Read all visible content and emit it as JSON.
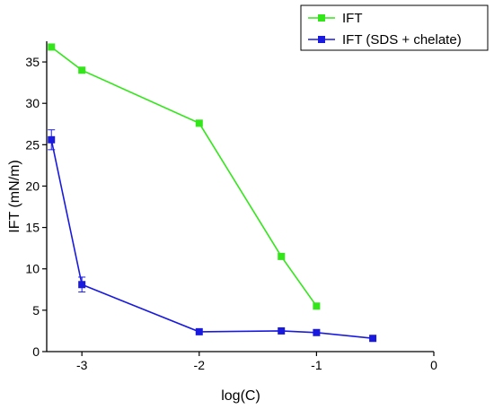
{
  "chart_data": {
    "type": "line",
    "title": "",
    "xlabel": "log(C)",
    "ylabel": "IFT (mN/m)",
    "xlim": [
      -3.3,
      0
    ],
    "ylim": [
      0,
      37.5
    ],
    "x_ticks": [
      -3,
      -2,
      -1,
      0
    ],
    "x_tick_labels": [
      "-3",
      "-2",
      "-1",
      "0"
    ],
    "y_ticks": [
      0,
      5,
      10,
      15,
      20,
      25,
      30,
      35
    ],
    "y_tick_labels": [
      "0",
      "5",
      "10",
      "15",
      "20",
      "25",
      "30",
      "35"
    ],
    "grid": false,
    "legend_position": "top-right",
    "series": [
      {
        "name": "IFT",
        "color": "#33e61a",
        "marker": "square",
        "x": [
          -3.26,
          -3.0,
          -2.0,
          -1.3,
          -1.0
        ],
        "y": [
          36.8,
          34.0,
          27.6,
          11.5,
          5.5
        ]
      },
      {
        "name": "IFT (SDS + chelate)",
        "color": "#1a1adf",
        "marker": "square",
        "x": [
          -3.26,
          -3.0,
          -2.0,
          -1.3,
          -1.0,
          -0.52
        ],
        "y": [
          25.6,
          8.1,
          2.4,
          2.5,
          2.3,
          1.6
        ],
        "error": [
          1.2,
          0.9,
          0,
          0,
          0,
          0
        ]
      }
    ]
  }
}
